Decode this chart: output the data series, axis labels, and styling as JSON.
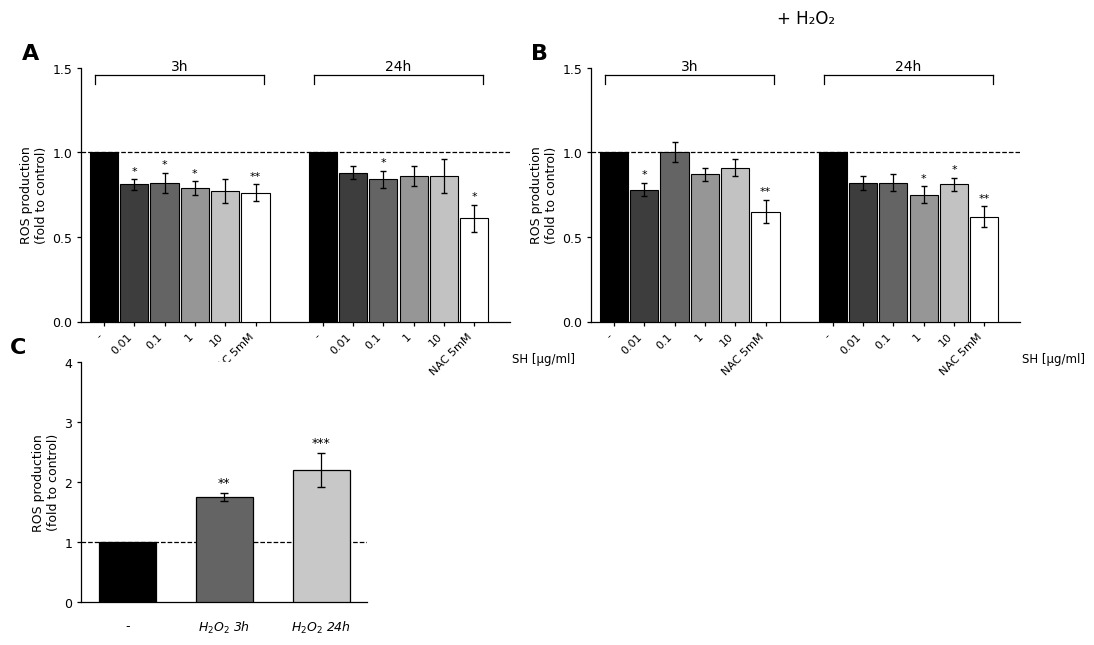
{
  "panel_A": {
    "title": "A",
    "categories": [
      "-",
      "0.01",
      "0.1",
      "1",
      "10",
      "NAC 5mM"
    ],
    "values_3h": [
      1.0,
      0.81,
      0.82,
      0.79,
      0.77,
      0.76
    ],
    "errors_3h": [
      0.0,
      0.03,
      0.06,
      0.04,
      0.07,
      0.05
    ],
    "values_24h": [
      1.0,
      0.88,
      0.84,
      0.86,
      0.86,
      0.61
    ],
    "errors_24h": [
      0.0,
      0.04,
      0.05,
      0.06,
      0.1,
      0.08
    ],
    "stars_3h": [
      "",
      "*",
      "*",
      "*",
      "",
      "**"
    ],
    "stars_24h": [
      "",
      "",
      "*",
      "",
      "",
      "*"
    ],
    "ylim": [
      0,
      1.5
    ],
    "yticks": [
      0.0,
      0.5,
      1.0,
      1.5
    ],
    "ylabel": "ROS production\n(fold to control)",
    "xlabel": "SH [μg/ml]"
  },
  "panel_B": {
    "title": "B",
    "top_label": "+ H₂O₂",
    "categories": [
      "-",
      "0.01",
      "0.1",
      "1",
      "10",
      "NAC 5mM"
    ],
    "values_3h": [
      1.0,
      0.78,
      1.0,
      0.87,
      0.91,
      0.65
    ],
    "errors_3h": [
      0.0,
      0.04,
      0.06,
      0.04,
      0.05,
      0.07
    ],
    "values_24h": [
      1.0,
      0.82,
      0.82,
      0.75,
      0.81,
      0.62
    ],
    "errors_24h": [
      0.0,
      0.04,
      0.05,
      0.05,
      0.04,
      0.06
    ],
    "stars_3h": [
      "",
      "*",
      "",
      "",
      "",
      "**"
    ],
    "stars_24h": [
      "",
      "",
      "",
      "*",
      "*",
      "**"
    ],
    "ylim": [
      0,
      1.5
    ],
    "yticks": [
      0.0,
      0.5,
      1.0,
      1.5
    ],
    "ylabel": "ROS production\n(fold to control)",
    "xlabel": "SH [μg/ml]"
  },
  "panel_C": {
    "title": "C",
    "categories": [
      "-",
      "H₂O₂ 3h",
      "H₂O₂ 24h"
    ],
    "values": [
      1.0,
      1.75,
      2.2
    ],
    "errors": [
      0.0,
      0.07,
      0.28
    ],
    "stars": [
      "",
      "**",
      "***"
    ],
    "ylim": [
      0,
      4
    ],
    "yticks": [
      0,
      1,
      2,
      3,
      4
    ],
    "ylabel": "ROS production\n(fold to control)",
    "xlabel": ""
  },
  "bar_colors_AB": [
    "#000000",
    "#3d3d3d",
    "#646464",
    "#969696",
    "#c2c2c2",
    "#ffffff"
  ],
  "bar_colors_C": [
    "#000000",
    "#646464",
    "#c8c8c8"
  ]
}
